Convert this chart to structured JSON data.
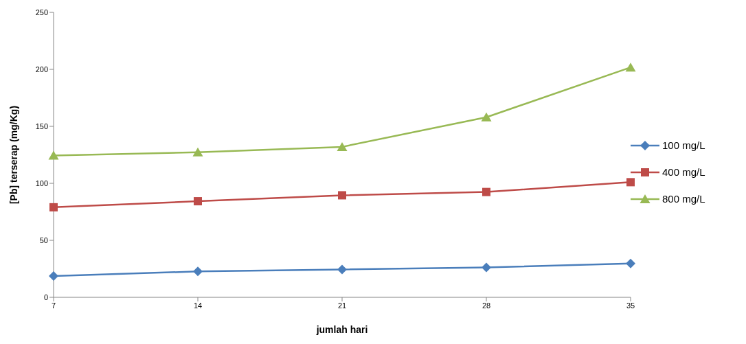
{
  "chart_data": {
    "type": "line",
    "xlabel": "jumlah hari",
    "ylabel": "[Pb] terserap (mg/Kg)",
    "categories": [
      "7",
      "14",
      "21",
      "28",
      "35"
    ],
    "ylim": [
      0,
      250
    ],
    "yticks": [
      0,
      50,
      100,
      150,
      200,
      250
    ],
    "grid": false,
    "legend": "right",
    "series": [
      {
        "name": "100 mg/L",
        "color": "#4a7ebb",
        "marker": "diamond",
        "values": [
          18.6,
          22.7,
          24.4,
          26.2,
          29.7
        ]
      },
      {
        "name": "400 mg/L",
        "color": "#be4b48",
        "marker": "square",
        "values": [
          79,
          84.3,
          89.5,
          92.4,
          101
        ]
      },
      {
        "name": "800 mg/L",
        "color": "#98b954",
        "marker": "triangle",
        "values": [
          124.4,
          127.3,
          132,
          158,
          201.7
        ]
      }
    ]
  }
}
